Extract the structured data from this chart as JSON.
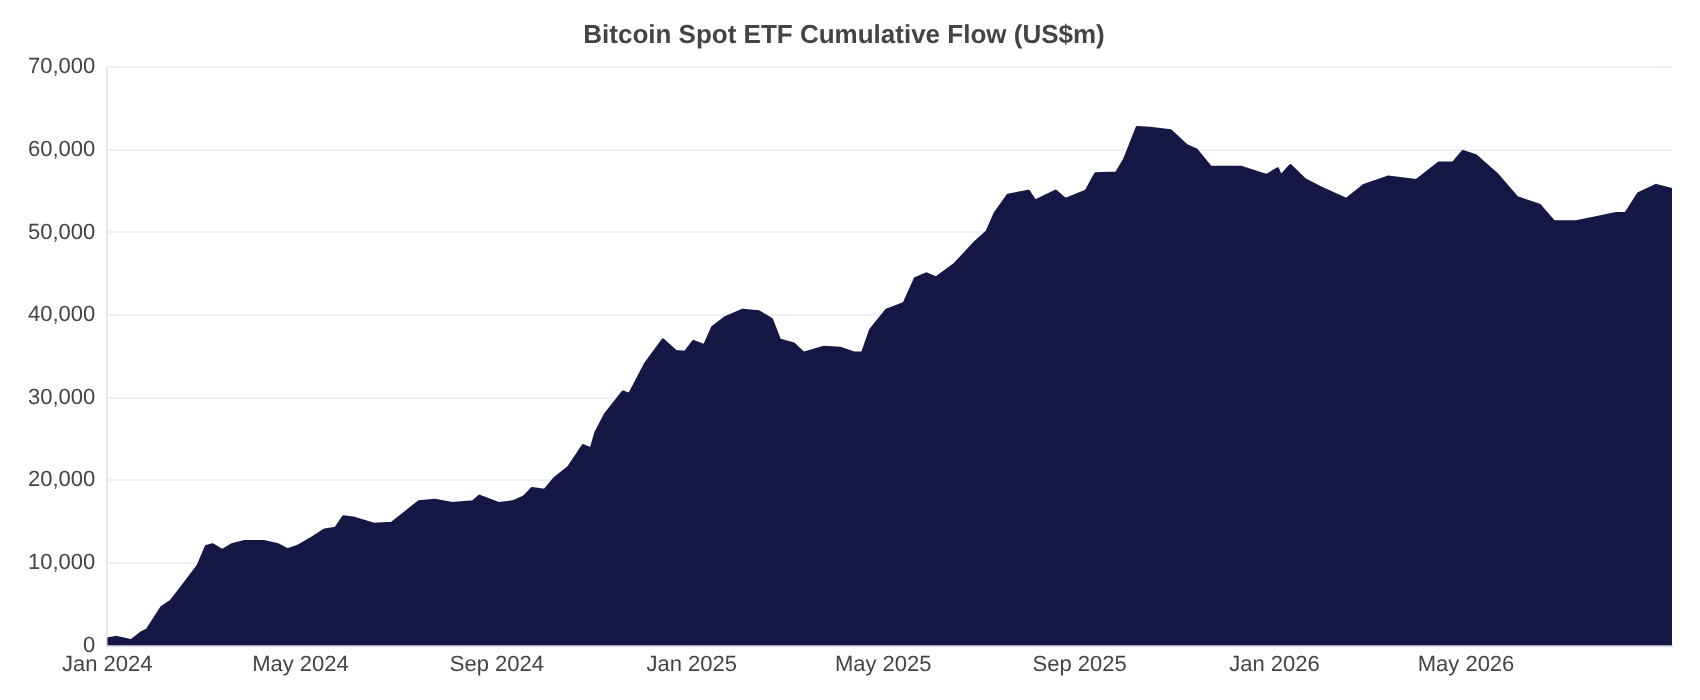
{
  "chart_data": {
    "type": "area",
    "title": "Bitcoin Spot ETF Cumulative Flow (US$m)",
    "x": [
      "2024-01-01",
      "2024-01-07",
      "2024-01-16",
      "2024-01-22",
      "2024-01-26",
      "2024-02-04",
      "2024-02-10",
      "2024-02-18",
      "2024-02-27",
      "2024-03-03",
      "2024-03-07",
      "2024-03-13",
      "2024-03-19",
      "2024-03-27",
      "2024-04-08",
      "2024-04-17",
      "2024-04-23",
      "2024-04-29",
      "2024-05-08",
      "2024-05-16",
      "2024-05-23",
      "2024-05-28",
      "2024-06-04",
      "2024-06-16",
      "2024-06-27",
      "2024-07-05",
      "2024-07-14",
      "2024-07-24",
      "2024-08-04",
      "2024-08-17",
      "2024-08-21",
      "2024-09-02",
      "2024-09-11",
      "2024-09-18",
      "2024-09-23",
      "2024-10-01",
      "2024-10-07",
      "2024-10-16",
      "2024-10-25",
      "2024-10-30",
      "2024-11-02",
      "2024-11-08",
      "2024-11-19",
      "2024-11-23",
      "2024-12-03",
      "2024-12-14",
      "2024-12-22",
      "2024-12-28",
      "2025-01-02",
      "2025-01-09",
      "2025-01-14",
      "2025-01-22",
      "2025-02-02",
      "2025-02-12",
      "2025-02-20",
      "2025-02-25",
      "2025-03-06",
      "2025-03-12",
      "2025-03-25",
      "2025-04-04",
      "2025-04-13",
      "2025-04-18",
      "2025-04-23",
      "2025-05-03",
      "2025-05-14",
      "2025-05-21",
      "2025-05-28",
      "2025-06-03",
      "2025-06-15",
      "2025-06-27",
      "2025-07-05",
      "2025-07-10",
      "2025-07-18",
      "2025-07-31",
      "2025-08-04",
      "2025-08-17",
      "2025-08-23",
      "2025-09-05",
      "2025-09-11",
      "2025-09-24",
      "2025-09-29",
      "2025-10-07",
      "2025-10-15",
      "2025-10-28",
      "2025-11-07",
      "2025-11-13",
      "2025-11-22",
      "2025-12-11",
      "2025-12-27",
      "2026-01-03",
      "2026-01-05",
      "2026-01-11",
      "2026-01-20",
      "2026-01-30",
      "2026-02-15",
      "2026-02-26",
      "2026-03-13",
      "2026-03-31",
      "2026-04-14",
      "2026-04-23",
      "2026-04-29",
      "2026-05-07",
      "2026-05-20",
      "2026-06-02",
      "2026-06-16",
      "2026-06-25",
      "2026-07-09",
      "2026-07-22",
      "2026-08-03",
      "2026-08-09",
      "2026-08-17",
      "2026-08-28",
      "2026-09-07"
    ],
    "series": [
      {
        "color": "#151744",
        "values": [
          800,
          1000,
          600,
          1500,
          1900,
          4600,
          5400,
          7400,
          9700,
          12000,
          12200,
          11500,
          12200,
          12600,
          12600,
          12200,
          11600,
          12000,
          13000,
          14000,
          14200,
          15600,
          15400,
          14700,
          14800,
          16000,
          17400,
          17600,
          17200,
          17400,
          18100,
          17200,
          17400,
          18000,
          19000,
          18800,
          20200,
          21600,
          24200,
          23800,
          25800,
          28000,
          30700,
          30400,
          34100,
          37000,
          35600,
          35500,
          36800,
          36300,
          38500,
          39700,
          40600,
          40400,
          39500,
          37000,
          36500,
          35400,
          36100,
          36000,
          35400,
          35400,
          38200,
          40600,
          41400,
          44400,
          45000,
          44500,
          46200,
          48700,
          50100,
          52300,
          54500,
          55000,
          53800,
          55000,
          54000,
          55000,
          57100,
          57200,
          58800,
          62700,
          62600,
          62300,
          60500,
          60000,
          57900,
          57900,
          56900,
          57700,
          56800,
          58100,
          56400,
          55400,
          54000,
          55700,
          56700,
          56300,
          58400,
          58400,
          59800,
          59300,
          57100,
          54200,
          53300,
          51300,
          51300,
          51800,
          52300,
          52300,
          54700,
          55700,
          55200
        ]
      }
    ],
    "xlim": [
      "2024-01-01",
      "2026-09-07"
    ],
    "xticks": [
      {
        "value": "2024-01-01",
        "label": "Jan 2024"
      },
      {
        "value": "2024-05-01",
        "label": "May 2024"
      },
      {
        "value": "2024-09-01",
        "label": "Sep 2024"
      },
      {
        "value": "2025-01-01",
        "label": "Jan 2025"
      },
      {
        "value": "2025-05-01",
        "label": "May 2025"
      },
      {
        "value": "2025-09-01",
        "label": "Sep 2025"
      },
      {
        "value": "2026-01-01",
        "label": "Jan 2026"
      },
      {
        "value": "2026-05-01",
        "label": "May 2026"
      }
    ],
    "ylim": [
      0,
      70000
    ],
    "yticks": [
      0,
      {
        "value": 10000,
        "label": "10,000"
      },
      {
        "value": 20000,
        "label": "20,000"
      },
      {
        "value": 30000,
        "label": "30,000"
      },
      {
        "value": 40000,
        "label": "40,000"
      },
      {
        "value": 50000,
        "label": "50,000"
      },
      {
        "value": 60000,
        "label": "60,000"
      },
      {
        "value": 70000,
        "label": "70,000"
      }
    ],
    "grid": "y",
    "legend": false
  }
}
